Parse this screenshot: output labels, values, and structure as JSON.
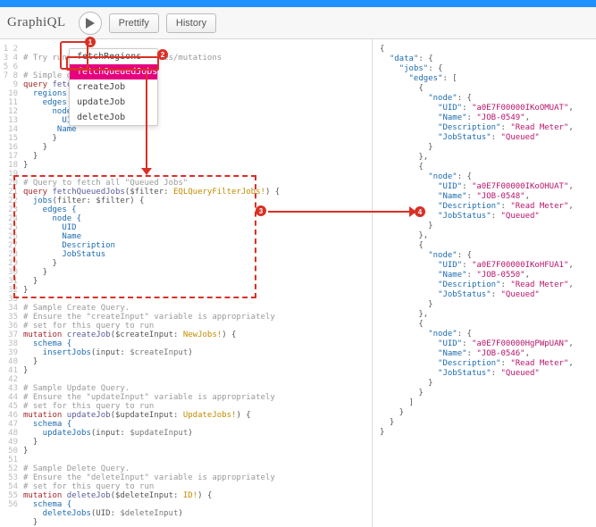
{
  "colors": {
    "header_bar": "#1E90FF",
    "highlight_border": "#D93025",
    "dropdown_selected": "#E6007E",
    "gutter_text": "#bbbbbb",
    "result_key": "#1e6cb0",
    "result_string": "#b8156a",
    "code_comment": "#9a9a9a",
    "code_keyword": "#a52a2a",
    "code_type": "#c28b00"
  },
  "toolbar": {
    "logo": "GraphiQL",
    "prettify": "Prettify",
    "history": "History"
  },
  "dropdown": {
    "items": [
      "fetchRegions",
      "fetchQueuedJobs",
      "createJob",
      "updateJob",
      "deleteJob"
    ],
    "selected_index": 1
  },
  "badges": [
    "1",
    "2",
    "3",
    "4"
  ],
  "editor": {
    "line_count": 56,
    "lines": [
      {
        "n": 1,
        "seg": []
      },
      {
        "n": 2,
        "seg": [
          {
            "t": "# Try running different queries/mutations",
            "c": "c-comment"
          }
        ]
      },
      {
        "n": 3,
        "seg": []
      },
      {
        "n": 4,
        "seg": [
          {
            "t": "# Simple qu",
            "c": "c-comment"
          }
        ]
      },
      {
        "n": 5,
        "seg": [
          {
            "t": "query ",
            "c": "c-kw"
          },
          {
            "t": "fetch",
            "c": "c-name"
          }
        ]
      },
      {
        "n": 6,
        "seg": [
          {
            "t": "  regions {",
            "c": "c-field"
          }
        ]
      },
      {
        "n": 7,
        "seg": [
          {
            "t": "    edges {",
            "c": "c-field"
          }
        ]
      },
      {
        "n": 8,
        "seg": [
          {
            "t": "      node {",
            "c": "c-field"
          }
        ]
      },
      {
        "n": 9,
        "seg": [
          {
            "t": "        UID",
            "c": "c-field"
          }
        ]
      },
      {
        "n": 10,
        "seg": [
          {
            "t": "       Name",
            "c": "c-field"
          }
        ]
      },
      {
        "n": 11,
        "seg": [
          {
            "t": "      }",
            "c": "c-punct"
          }
        ]
      },
      {
        "n": 12,
        "seg": [
          {
            "t": "    }",
            "c": "c-punct"
          }
        ]
      },
      {
        "n": 13,
        "seg": [
          {
            "t": "  }",
            "c": "c-punct"
          }
        ]
      },
      {
        "n": 14,
        "seg": [
          {
            "t": "}",
            "c": "c-punct"
          }
        ]
      },
      {
        "n": 15,
        "seg": []
      },
      {
        "n": 16,
        "seg": [
          {
            "t": "# Query to fetch all \"Queued Jobs\"",
            "c": "c-comment"
          }
        ]
      },
      {
        "n": 17,
        "seg": [
          {
            "t": "query ",
            "c": "c-kw"
          },
          {
            "t": "fetchQueuedJobs",
            "c": "c-name"
          },
          {
            "t": "($filter: ",
            "c": "c-punct"
          },
          {
            "t": "EQLQueryFilterJobs!",
            "c": "c-type"
          },
          {
            "t": ") {",
            "c": "c-punct"
          }
        ]
      },
      {
        "n": 18,
        "seg": [
          {
            "t": "  jobs",
            "c": "c-field"
          },
          {
            "t": "(filter: $filter) {",
            "c": "c-punct"
          }
        ]
      },
      {
        "n": 19,
        "seg": [
          {
            "t": "    edges {",
            "c": "c-field"
          }
        ]
      },
      {
        "n": 20,
        "seg": [
          {
            "t": "      node {",
            "c": "c-field"
          }
        ]
      },
      {
        "n": 21,
        "seg": [
          {
            "t": "        UID",
            "c": "c-field"
          }
        ]
      },
      {
        "n": 22,
        "seg": [
          {
            "t": "        Name",
            "c": "c-field"
          }
        ]
      },
      {
        "n": 23,
        "seg": [
          {
            "t": "        Description",
            "c": "c-field"
          }
        ]
      },
      {
        "n": 24,
        "seg": [
          {
            "t": "        JobStatus",
            "c": "c-field"
          }
        ]
      },
      {
        "n": 25,
        "seg": [
          {
            "t": "      }",
            "c": "c-punct"
          }
        ]
      },
      {
        "n": 26,
        "seg": [
          {
            "t": "    }",
            "c": "c-punct"
          }
        ]
      },
      {
        "n": 27,
        "seg": [
          {
            "t": "  }",
            "c": "c-punct"
          }
        ]
      },
      {
        "n": 28,
        "seg": [
          {
            "t": "}",
            "c": "c-punct"
          }
        ]
      },
      {
        "n": 29,
        "seg": []
      },
      {
        "n": 30,
        "seg": [
          {
            "t": "# Sample Create Query.",
            "c": "c-comment"
          }
        ]
      },
      {
        "n": 31,
        "seg": [
          {
            "t": "# Ensure the \"createInput\" variable is appropriately",
            "c": "c-comment"
          }
        ]
      },
      {
        "n": 32,
        "seg": [
          {
            "t": "# set for this query to run",
            "c": "c-comment"
          }
        ]
      },
      {
        "n": 33,
        "seg": [
          {
            "t": "mutation ",
            "c": "c-kw"
          },
          {
            "t": "createJob",
            "c": "c-name"
          },
          {
            "t": "($createInput: ",
            "c": "c-punct"
          },
          {
            "t": "NewJobs!",
            "c": "c-type"
          },
          {
            "t": ") {",
            "c": "c-punct"
          }
        ]
      },
      {
        "n": 34,
        "seg": [
          {
            "t": "  schema {",
            "c": "c-field"
          }
        ]
      },
      {
        "n": 35,
        "seg": [
          {
            "t": "    insertJobs",
            "c": "c-field"
          },
          {
            "t": "(input: ",
            "c": "c-punct"
          },
          {
            "t": "$createInput",
            "c": "c-var"
          },
          {
            "t": ")",
            "c": "c-punct"
          }
        ]
      },
      {
        "n": 36,
        "seg": [
          {
            "t": "  }",
            "c": "c-punct"
          }
        ]
      },
      {
        "n": 37,
        "seg": [
          {
            "t": "}",
            "c": "c-punct"
          }
        ]
      },
      {
        "n": 38,
        "seg": []
      },
      {
        "n": 39,
        "seg": [
          {
            "t": "# Sample Update Query.",
            "c": "c-comment"
          }
        ]
      },
      {
        "n": 40,
        "seg": [
          {
            "t": "# Ensure the \"updateInput\" variable is appropriately",
            "c": "c-comment"
          }
        ]
      },
      {
        "n": 41,
        "seg": [
          {
            "t": "# set for this query to run",
            "c": "c-comment"
          }
        ]
      },
      {
        "n": 42,
        "seg": [
          {
            "t": "mutation ",
            "c": "c-kw"
          },
          {
            "t": "updateJob",
            "c": "c-name"
          },
          {
            "t": "($updateInput: ",
            "c": "c-punct"
          },
          {
            "t": "UpdateJobs!",
            "c": "c-type"
          },
          {
            "t": ") {",
            "c": "c-punct"
          }
        ]
      },
      {
        "n": 43,
        "seg": [
          {
            "t": "  schema {",
            "c": "c-field"
          }
        ]
      },
      {
        "n": 44,
        "seg": [
          {
            "t": "    updateJobs",
            "c": "c-field"
          },
          {
            "t": "(input: ",
            "c": "c-punct"
          },
          {
            "t": "$updateInput",
            "c": "c-var"
          },
          {
            "t": ")",
            "c": "c-punct"
          }
        ]
      },
      {
        "n": 45,
        "seg": [
          {
            "t": "  }",
            "c": "c-punct"
          }
        ]
      },
      {
        "n": 46,
        "seg": [
          {
            "t": "}",
            "c": "c-punct"
          }
        ]
      },
      {
        "n": 47,
        "seg": []
      },
      {
        "n": 48,
        "seg": [
          {
            "t": "# Sample Delete Query.",
            "c": "c-comment"
          }
        ]
      },
      {
        "n": 49,
        "seg": [
          {
            "t": "# Ensure the \"deleteInput\" variable is appropriately",
            "c": "c-comment"
          }
        ]
      },
      {
        "n": 50,
        "seg": [
          {
            "t": "# set for this query to run",
            "c": "c-comment"
          }
        ]
      },
      {
        "n": 51,
        "seg": [
          {
            "t": "mutation ",
            "c": "c-kw"
          },
          {
            "t": "deleteJob",
            "c": "c-name"
          },
          {
            "t": "($deleteInput: ",
            "c": "c-punct"
          },
          {
            "t": "ID!",
            "c": "c-type"
          },
          {
            "t": ") {",
            "c": "c-punct"
          }
        ]
      },
      {
        "n": 52,
        "seg": [
          {
            "t": "  schema {",
            "c": "c-field"
          }
        ]
      },
      {
        "n": 53,
        "seg": [
          {
            "t": "    deleteJobs",
            "c": "c-field"
          },
          {
            "t": "(UID: ",
            "c": "c-punct"
          },
          {
            "t": "$deleteInput",
            "c": "c-var"
          },
          {
            "t": ")",
            "c": "c-punct"
          }
        ]
      },
      {
        "n": 54,
        "seg": [
          {
            "t": "  }",
            "c": "c-punct"
          }
        ]
      },
      {
        "n": 55,
        "seg": [
          {
            "t": "}",
            "c": "c-punct"
          }
        ]
      },
      {
        "n": 56,
        "seg": []
      }
    ]
  },
  "result": {
    "data_key": "data",
    "jobs_key": "jobs",
    "edges_key": "edges",
    "node_key": "node",
    "fields": [
      "UID",
      "Name",
      "Description",
      "JobStatus"
    ],
    "nodes": [
      {
        "UID": "a0E7F00000IKoOMUAT",
        "Name": "JOB-0549",
        "Description": "Read Meter",
        "JobStatus": "Queued"
      },
      {
        "UID": "a0E7F00000IKoOHUAT",
        "Name": "JOB-0548",
        "Description": "Read Meter",
        "JobStatus": "Queued"
      },
      {
        "UID": "a0E7F00000IKoHFUA1",
        "Name": "JOB-0550",
        "Description": "Read Meter",
        "JobStatus": "Queued"
      },
      {
        "UID": "a0E7F00000HgPWpUAN",
        "Name": "JOB-0546",
        "Description": "Read Meter",
        "JobStatus": "Queued"
      }
    ]
  }
}
